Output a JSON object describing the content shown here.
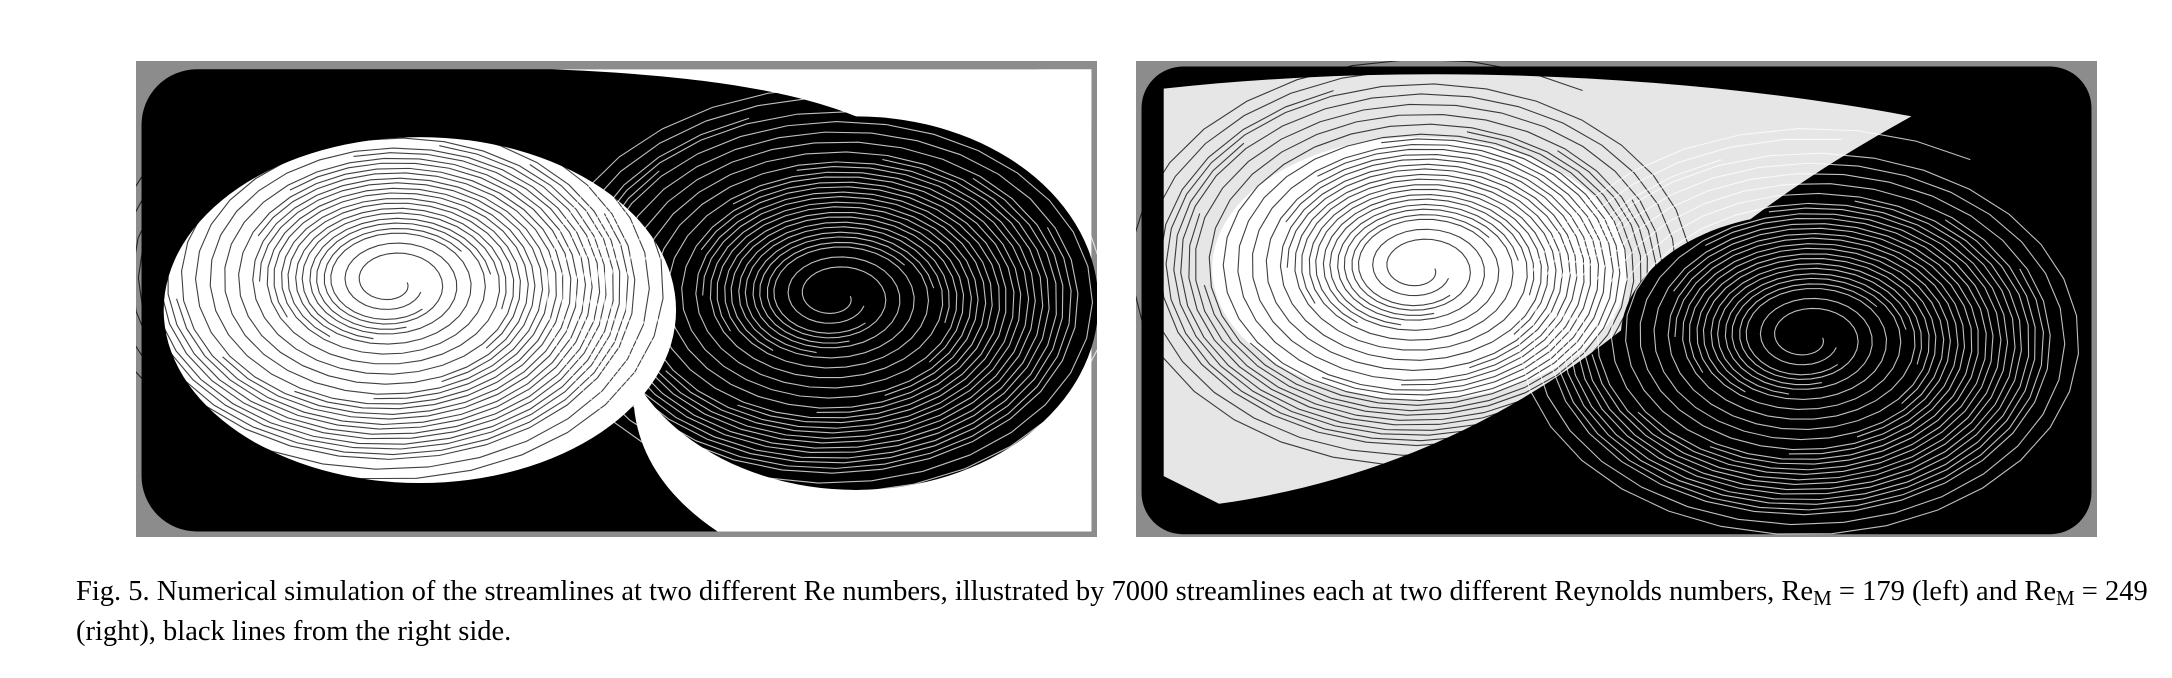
{
  "figure": {
    "label": "Fig. 5.",
    "caption": {
      "text_1": "Numerical simulation of the streamlines at two different Re numbers, illustrated by 7000 streamlines each at two different Reynolds numbers, Re",
      "subscript_1": "M",
      "text_2": " = 179 (left) and Re",
      "subscript_2": "M",
      "text_3": " = 249 (right), black lines from the right side."
    }
  }
}
